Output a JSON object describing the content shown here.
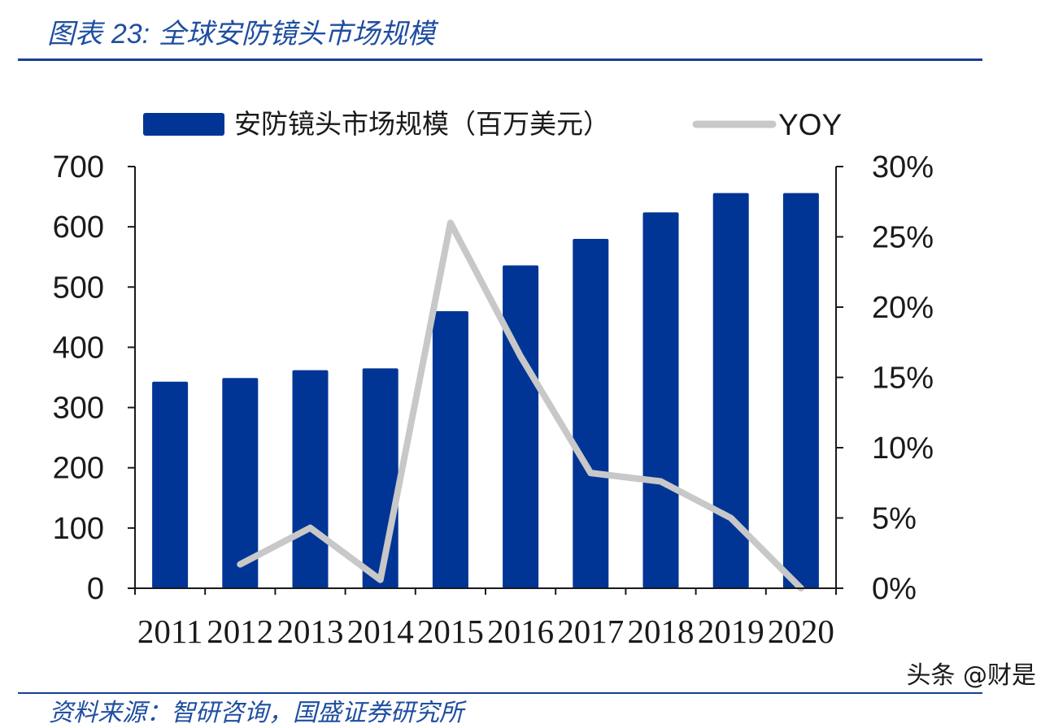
{
  "header": {
    "title_prefix": "图表 ",
    "title_number": "23:",
    "title_text": "全球安防镜头市场规模"
  },
  "footer": {
    "source": "资料来源：智研咨询，国盛证券研究所",
    "watermark": "头条 @财是"
  },
  "colors": {
    "bar": "#003595",
    "line": "#c8c8c8",
    "axis": "#1a1a1a",
    "rule": "#173e97"
  },
  "chart_data": {
    "type": "bar",
    "categories": [
      "2011",
      "2012",
      "2013",
      "2014",
      "2015",
      "2016",
      "2017",
      "2018",
      "2019",
      "2020"
    ],
    "series": [
      {
        "name": "安防镜头市场规模（百万美元）",
        "type": "bar",
        "axis": "left",
        "values": [
          343,
          349,
          362,
          365,
          460,
          536,
          580,
          624,
          656,
          656
        ]
      },
      {
        "name": "YOY",
        "type": "line",
        "axis": "right",
        "values": [
          null,
          1.7,
          4.3,
          0.6,
          26.0,
          16.5,
          8.2,
          7.6,
          5.0,
          0.0
        ]
      }
    ],
    "left_axis": {
      "ylim": [
        0,
        700
      ],
      "ticks": [
        0,
        100,
        200,
        300,
        400,
        500,
        600,
        700
      ],
      "tick_labels": [
        "0",
        "100",
        "200",
        "300",
        "400",
        "500",
        "600",
        "700"
      ]
    },
    "right_axis": {
      "ylim": [
        0,
        30
      ],
      "ticks": [
        0,
        5,
        10,
        15,
        20,
        25,
        30
      ],
      "tick_labels": [
        "0%",
        "5%",
        "10%",
        "15%",
        "20%",
        "25%",
        "30%"
      ]
    },
    "legend": {
      "placement": "top",
      "entries": [
        "安防镜头市场规模（百万美元）",
        "YOY"
      ]
    },
    "grid": false
  }
}
